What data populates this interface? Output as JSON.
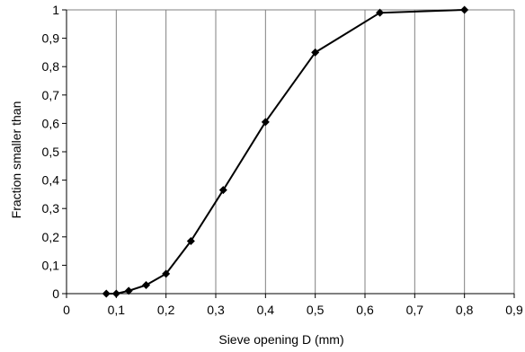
{
  "chart_data": {
    "type": "line",
    "title": "",
    "xlabel": "Sieve opening D (mm)",
    "ylabel": "Fraction smaller than",
    "xlim": [
      0,
      0.9
    ],
    "ylim": [
      0,
      1
    ],
    "x_ticks": [
      0,
      0.1,
      0.2,
      0.3,
      0.4,
      0.5,
      0.6,
      0.7,
      0.8,
      0.9
    ],
    "x_tick_labels": [
      "0",
      "0,1",
      "0,2",
      "0,3",
      "0,4",
      "0,5",
      "0,6",
      "0,7",
      "0,8",
      "0,9"
    ],
    "y_ticks": [
      0,
      0.1,
      0.2,
      0.3,
      0.4,
      0.5,
      0.6,
      0.7,
      0.8,
      0.9,
      1
    ],
    "y_tick_labels": [
      "0",
      "0,1",
      "0,2",
      "0,3",
      "0,4",
      "0,5",
      "0,6",
      "0,7",
      "0,8",
      "0,9",
      "1"
    ],
    "grid": "vertical",
    "marker": "diamond",
    "series": [
      {
        "x": [
          0.08,
          0.1,
          0.125,
          0.16,
          0.2,
          0.25,
          0.315,
          0.4,
          0.5,
          0.63,
          0.8
        ],
        "y": [
          0.0,
          0.0,
          0.01,
          0.03,
          0.07,
          0.185,
          0.365,
          0.605,
          0.85,
          0.99,
          1.0
        ]
      }
    ],
    "colors": {
      "line": "#000000",
      "grid": "#808080",
      "plot_border": "#808080",
      "axis": "#000000"
    }
  }
}
